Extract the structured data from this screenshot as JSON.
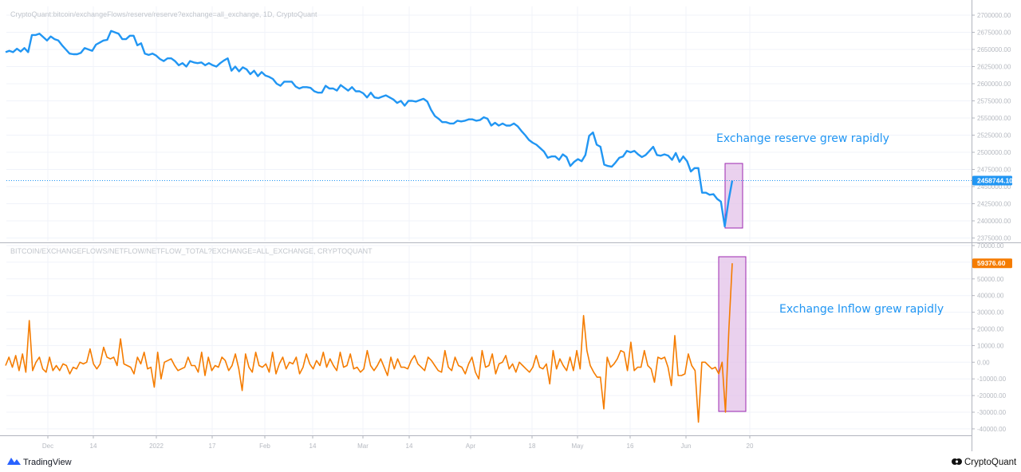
{
  "branding": {
    "left": "TradingView",
    "right": "CryptoQuant"
  },
  "colors": {
    "reserve": "#2196F3",
    "netflow": "#F57C00",
    "highlight_fill": "#E1BEE7",
    "highlight_stroke": "#9C27B0",
    "annotation": "#2196F3"
  },
  "time_axis": [
    "Dec",
    "14",
    "2022",
    "17",
    "Feb",
    "14",
    "Mar",
    "14",
    "Apr",
    "18",
    "May",
    "16",
    "Jun",
    "20"
  ],
  "chart_data": [
    {
      "type": "line",
      "title": "CryptoQuant:bitcoin/exchangeFlows/reserve/reserve?exchange=all_exchange, 1D, CryptoQuant",
      "color": "#2196F3",
      "ylim": [
        2370000,
        2700000
      ],
      "y_ticks": [
        "2700000.00",
        "2675000.00",
        "2650000.00",
        "2625000.00",
        "2600000.00",
        "2575000.00",
        "2550000.00",
        "2525000.00",
        "2500000.00",
        "2475000.00",
        "2450000.00",
        "2425000.00",
        "2400000.00",
        "2375000.00"
      ],
      "last_value_label": "2458744.10",
      "last_value": 2458744.1,
      "annotation": "Exchange reserve grew rapidly",
      "values": [
        2646000,
        2648000,
        2646000,
        2651000,
        2647000,
        2652000,
        2646000,
        2671000,
        2671000,
        2673000,
        2668000,
        2663000,
        2669000,
        2665000,
        2663000,
        2656000,
        2650000,
        2644000,
        2643000,
        2643000,
        2645000,
        2652000,
        2650000,
        2648000,
        2657000,
        2660000,
        2663000,
        2664000,
        2677000,
        2675000,
        2673000,
        2665000,
        2665000,
        2670000,
        2670000,
        2656000,
        2659000,
        2644000,
        2642000,
        2644000,
        2641000,
        2636000,
        2633000,
        2637000,
        2637000,
        2633000,
        2627000,
        2630000,
        2625000,
        2633000,
        2631000,
        2630000,
        2631000,
        2627000,
        2630000,
        2627000,
        2625000,
        2630000,
        2634000,
        2637000,
        2619000,
        2625000,
        2618000,
        2624000,
        2621000,
        2614000,
        2619000,
        2611000,
        2617000,
        2612000,
        2610000,
        2607000,
        2600000,
        2597000,
        2603000,
        2603000,
        2603000,
        2596000,
        2593000,
        2595000,
        2595000,
        2594000,
        2589000,
        2587000,
        2587000,
        2597000,
        2593000,
        2593000,
        2590000,
        2598000,
        2594000,
        2590000,
        2595000,
        2589000,
        2589000,
        2586000,
        2580000,
        2587000,
        2580000,
        2579000,
        2581000,
        2583000,
        2580000,
        2577000,
        2572000,
        2575000,
        2568000,
        2575000,
        2575000,
        2574000,
        2576000,
        2578000,
        2574000,
        2562000,
        2553000,
        2549000,
        2544000,
        2544000,
        2542000,
        2542000,
        2546000,
        2545000,
        2546000,
        2548000,
        2548000,
        2546000,
        2547000,
        2551000,
        2549000,
        2539000,
        2543000,
        2539000,
        2542000,
        2539000,
        2539000,
        2542000,
        2538000,
        2531000,
        2525000,
        2518000,
        2514000,
        2511000,
        2506000,
        2501000,
        2492000,
        2494000,
        2494000,
        2489000,
        2497000,
        2493000,
        2480000,
        2486000,
        2490000,
        2487000,
        2496000,
        2524000,
        2529000,
        2511000,
        2508000,
        2482000,
        2480000,
        2479000,
        2485000,
        2492000,
        2494000,
        2502000,
        2500000,
        2502000,
        2497000,
        2493000,
        2496000,
        2502000,
        2508000,
        2496000,
        2495000,
        2497000,
        2495000,
        2489000,
        2499000,
        2486000,
        2494000,
        2487000,
        2472000,
        2477000,
        2477000,
        2441000,
        2441000,
        2438000,
        2439000,
        2432000,
        2428000,
        2392000,
        2429000,
        2458744
      ]
    },
    {
      "type": "line",
      "title": "BITCOIN/EXCHANGEFLOWS/NETFLOW/NETFLOW_TOTAL?EXCHANGE=ALL_EXCHANGE, CRYPTOQUANT",
      "color": "#F57C00",
      "ylim": [
        -46000,
        70000
      ],
      "y_ticks": [
        "70000.00",
        "60000.00",
        "50000.00",
        "40000.00",
        "30000.00",
        "20000.00",
        "10000.00",
        "0.00",
        "-10000.00",
        "-20000.00",
        "-30000.00",
        "-40000.00"
      ],
      "last_value_label": "59376.60",
      "last_value": 59376.6,
      "annotation": "Exchange Inflow grew rapidly",
      "values": [
        -2000,
        3000,
        -3000,
        4000,
        -5000,
        5000,
        -6000,
        25000,
        -5000,
        0,
        3000,
        -4000,
        -6000,
        3000,
        -5000,
        -2000,
        -5000,
        -1000,
        -2000,
        -7000,
        -3000,
        -4000,
        0,
        -1000,
        0,
        8000,
        -1000,
        -4000,
        -1000,
        9000,
        3000,
        2000,
        3000,
        -2000,
        14000,
        -1000,
        -2000,
        -3000,
        -7000,
        3000,
        -1000,
        6000,
        -4000,
        -3000,
        -15000,
        6000,
        -10000,
        0,
        1000,
        2000,
        -2000,
        -5000,
        -4000,
        -3000,
        3000,
        -2000,
        -2000,
        -6000,
        6000,
        -8000,
        3000,
        -5000,
        -2000,
        -3000,
        3000,
        1000,
        -5000,
        -2000,
        5000,
        -4000,
        -17000,
        5000,
        -3000,
        -6000,
        6000,
        -2000,
        -3000,
        -1000,
        -6000,
        6000,
        -7000,
        -1000,
        3000,
        -4000,
        0,
        -1000,
        3000,
        -7000,
        -3000,
        5000,
        -1000,
        -4000,
        1000,
        -2000,
        6000,
        -3000,
        2000,
        -2000,
        -5000,
        6000,
        -3000,
        -2000,
        5000,
        -4000,
        -3000,
        -6000,
        -4000,
        7000,
        -2000,
        -5000,
        -2000,
        2000,
        -3000,
        -8000,
        3000,
        -4000,
        2000,
        -3000,
        -3000,
        -4000,
        1000,
        4000,
        -1000,
        -3000,
        -5000,
        3000,
        1000,
        -2000,
        -5000,
        -6000,
        7000,
        -3000,
        -5000,
        3000,
        -2000,
        -3000,
        -7000,
        -1000,
        3000,
        -6000,
        -10000,
        7000,
        -3000,
        -2000,
        5000,
        -7000,
        -1000,
        0,
        4000,
        -4000,
        -1000,
        -6000,
        0,
        -2000,
        -4000,
        -6000,
        -3000,
        4000,
        -3000,
        -4000,
        -1000,
        -13000,
        7000,
        -4000,
        2000,
        -2000,
        -5000,
        3000,
        -5000,
        7000,
        -4000,
        28000,
        7000,
        -2000,
        -6000,
        -9000,
        -9000,
        -28000,
        3000,
        -3000,
        -1000,
        2000,
        7000,
        6000,
        -5000,
        12000,
        -5000,
        -3000,
        -3000,
        7000,
        -2000,
        -4000,
        -12000,
        3000,
        2000,
        3000,
        -3000,
        -14000,
        16000,
        -8000,
        -8000,
        -7000,
        5000,
        -2000,
        -5000,
        -36000,
        0,
        0,
        -2000,
        -4000,
        -3000,
        -7000,
        0,
        -30000,
        20000,
        59376.6
      ]
    }
  ]
}
